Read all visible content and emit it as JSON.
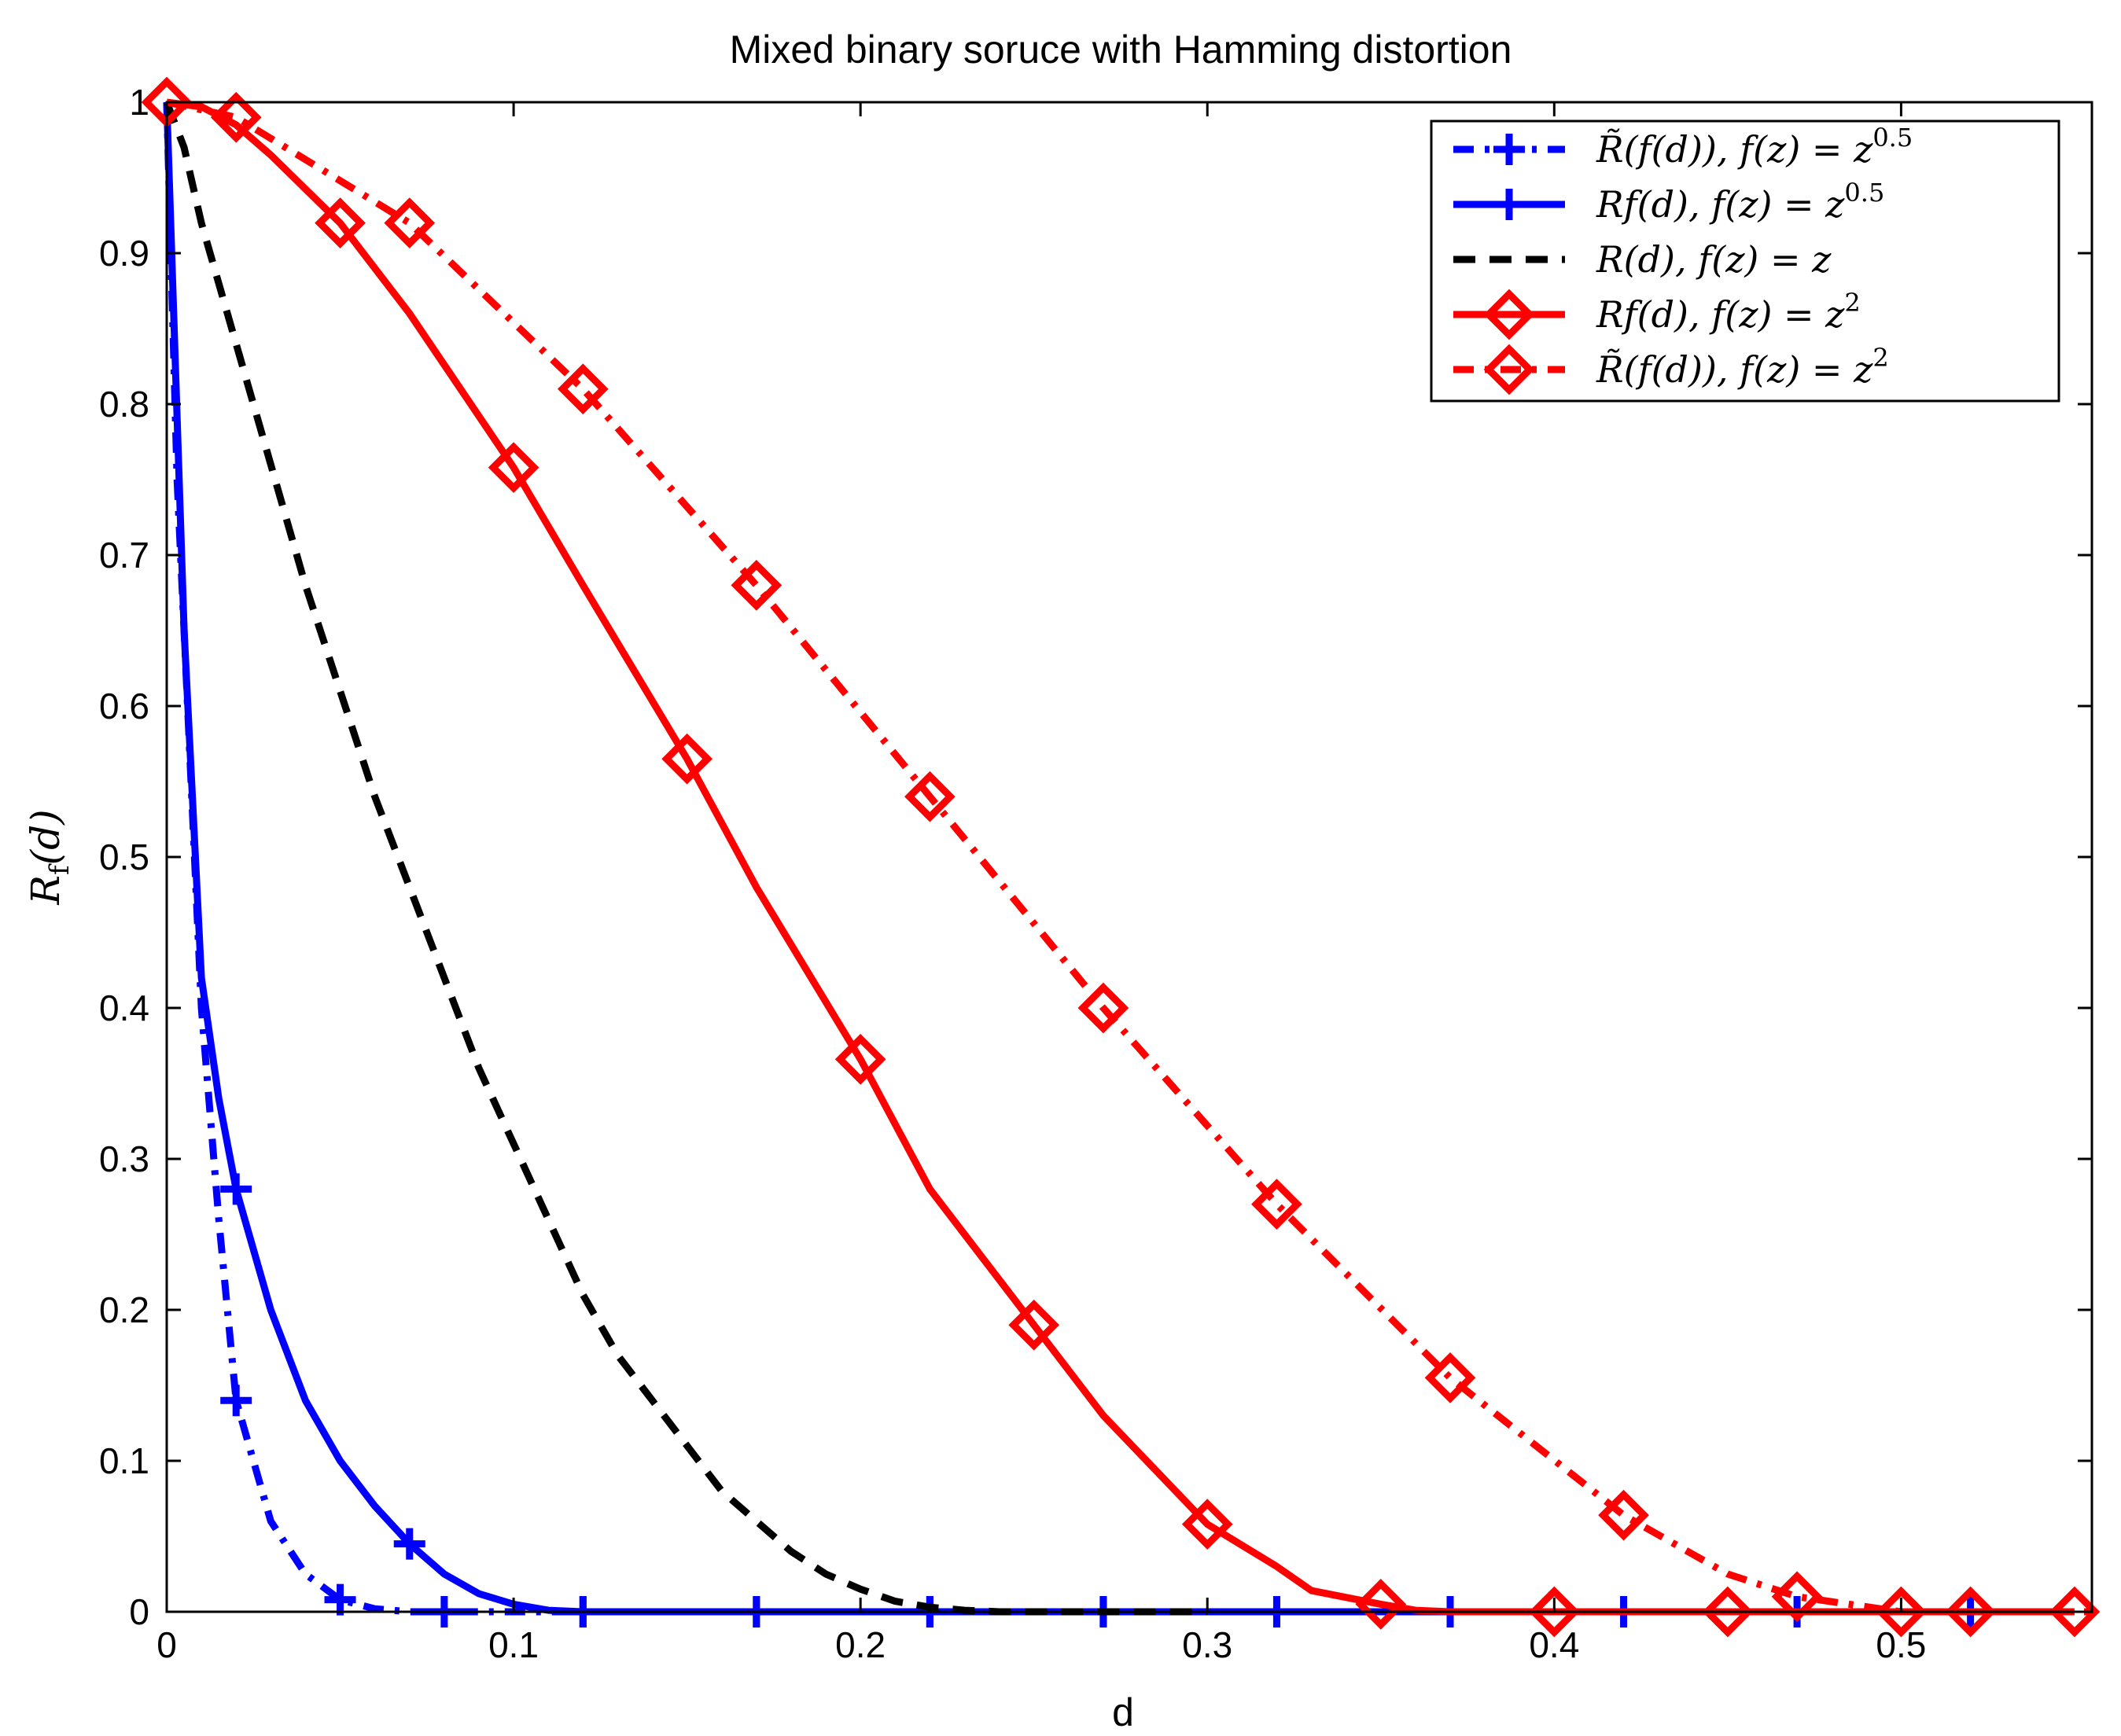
{
  "chart_data": {
    "type": "line",
    "title": "Mixed binary soruce with Hamming distortion",
    "xlabel": "d",
    "ylabel": "R_f(d)",
    "xlim": [
      0,
      0.555
    ],
    "ylim": [
      0,
      1
    ],
    "xticks": [
      0,
      0.1,
      0.2,
      0.3,
      0.4,
      0.5
    ],
    "xtick_labels": [
      "0",
      "0.1",
      "0.2",
      "0.3",
      "0.4",
      "0.5"
    ],
    "yticks": [
      0,
      0.1,
      0.2,
      0.3,
      0.4,
      0.5,
      0.6,
      0.7,
      0.8,
      0.9,
      1
    ],
    "ytick_labels": [
      "0",
      "0.1",
      "0.2",
      "0.3",
      "0.4",
      "0.5",
      "0.6",
      "0.7",
      "0.8",
      "0.9",
      "1"
    ],
    "grid": false,
    "legend_position": "top-right",
    "series": [
      {
        "name": "R̃(f(d)), f(z) = z^0.5",
        "color": "#0000ff",
        "style": "dashdot",
        "marker": "plus",
        "x": [
          0,
          0.003,
          0.006,
          0.01,
          0.015,
          0.02,
          0.03,
          0.04,
          0.05,
          0.06,
          0.07,
          0.08,
          0.12,
          0.17,
          0.22,
          0.27,
          0.32,
          0.37,
          0.42,
          0.47,
          0.52
        ],
        "y": [
          1,
          0.75,
          0.6,
          0.4,
          0.26,
          0.14,
          0.06,
          0.025,
          0.008,
          0.002,
          0,
          0,
          0,
          0,
          0,
          0,
          0,
          0,
          0,
          0,
          0
        ],
        "marker_x": [
          0.02,
          0.05,
          0.08,
          0.12,
          0.17,
          0.22,
          0.27,
          0.32,
          0.37,
          0.42,
          0.47,
          0.52
        ]
      },
      {
        "name": "R_f(d), f(z) = z^0.5",
        "color": "#0000ff",
        "style": "solid",
        "marker": "plus",
        "x": [
          0,
          0.005,
          0.01,
          0.015,
          0.02,
          0.03,
          0.04,
          0.05,
          0.06,
          0.07,
          0.08,
          0.09,
          0.1,
          0.11,
          0.12,
          0.17,
          0.22,
          0.27,
          0.32,
          0.37
        ],
        "y": [
          1,
          0.65,
          0.42,
          0.34,
          0.28,
          0.2,
          0.14,
          0.1,
          0.07,
          0.045,
          0.025,
          0.012,
          0.005,
          0.001,
          0,
          0,
          0,
          0,
          0,
          0
        ],
        "marker_x": [
          0.02,
          0.07,
          0.12,
          0.17,
          0.22,
          0.27,
          0.32,
          0.37
        ]
      },
      {
        "name": "R(d), f(z) = z",
        "color": "#000000",
        "style": "dashed",
        "marker": "none",
        "x": [
          0,
          0.005,
          0.01,
          0.02,
          0.03,
          0.04,
          0.05,
          0.06,
          0.07,
          0.08,
          0.09,
          0.1,
          0.11,
          0.12,
          0.13,
          0.14,
          0.15,
          0.16,
          0.17,
          0.18,
          0.19,
          0.2,
          0.21,
          0.22,
          0.23,
          0.24,
          0.25,
          0.27,
          0.3
        ],
        "y": [
          1,
          0.97,
          0.92,
          0.84,
          0.76,
          0.68,
          0.61,
          0.54,
          0.48,
          0.42,
          0.36,
          0.31,
          0.26,
          0.21,
          0.17,
          0.14,
          0.11,
          0.08,
          0.06,
          0.04,
          0.025,
          0.015,
          0.007,
          0.003,
          0.001,
          0,
          0,
          0,
          0
        ]
      },
      {
        "name": "R_f(d), f(z) = z^2",
        "color": "#ff0000",
        "style": "solid",
        "marker": "diamond",
        "x": [
          0,
          0.01,
          0.02,
          0.03,
          0.05,
          0.07,
          0.1,
          0.12,
          0.15,
          0.17,
          0.2,
          0.22,
          0.25,
          0.27,
          0.3,
          0.32,
          0.33,
          0.35,
          0.36,
          0.37,
          0.4,
          0.45,
          0.5,
          0.55
        ],
        "y": [
          1,
          0.997,
          0.985,
          0.965,
          0.92,
          0.86,
          0.758,
          0.68,
          0.565,
          0.48,
          0.366,
          0.28,
          0.19,
          0.13,
          0.058,
          0.03,
          0.014,
          0.005,
          0.001,
          0,
          0,
          0,
          0,
          0
        ],
        "marker_x": [
          0,
          0.05,
          0.1,
          0.15,
          0.2,
          0.25,
          0.3,
          0.35,
          0.4,
          0.45,
          0.5,
          0.55
        ]
      },
      {
        "name": "R̃(f(d)), f(z) = z^2",
        "color": "#ff0000",
        "style": "dashdot",
        "marker": "diamond",
        "x": [
          0,
          0.02,
          0.07,
          0.12,
          0.17,
          0.22,
          0.27,
          0.32,
          0.37,
          0.42,
          0.45,
          0.47,
          0.5,
          0.52,
          0.555
        ],
        "y": [
          1,
          0.99,
          0.92,
          0.81,
          0.68,
          0.54,
          0.4,
          0.27,
          0.155,
          0.064,
          0.025,
          0.01,
          0,
          0,
          0
        ],
        "marker_x": [
          0.02,
          0.07,
          0.12,
          0.17,
          0.22,
          0.27,
          0.32,
          0.37,
          0.42,
          0.47,
          0.52
        ]
      }
    ]
  },
  "legend": {
    "entries": [
      {
        "prefix": "R̃(f(d)), f(z) = z",
        "sup": "0.5"
      },
      {
        "prefix": "Rf(d), f(z) = z",
        "sup": "0.5"
      },
      {
        "prefix": "R(d), f(z) = z",
        "sup": ""
      },
      {
        "prefix": "Rf(d), f(z) = z",
        "sup": "2"
      },
      {
        "prefix": "R̃(f(d)), f(z) = z",
        "sup": "2"
      }
    ]
  }
}
